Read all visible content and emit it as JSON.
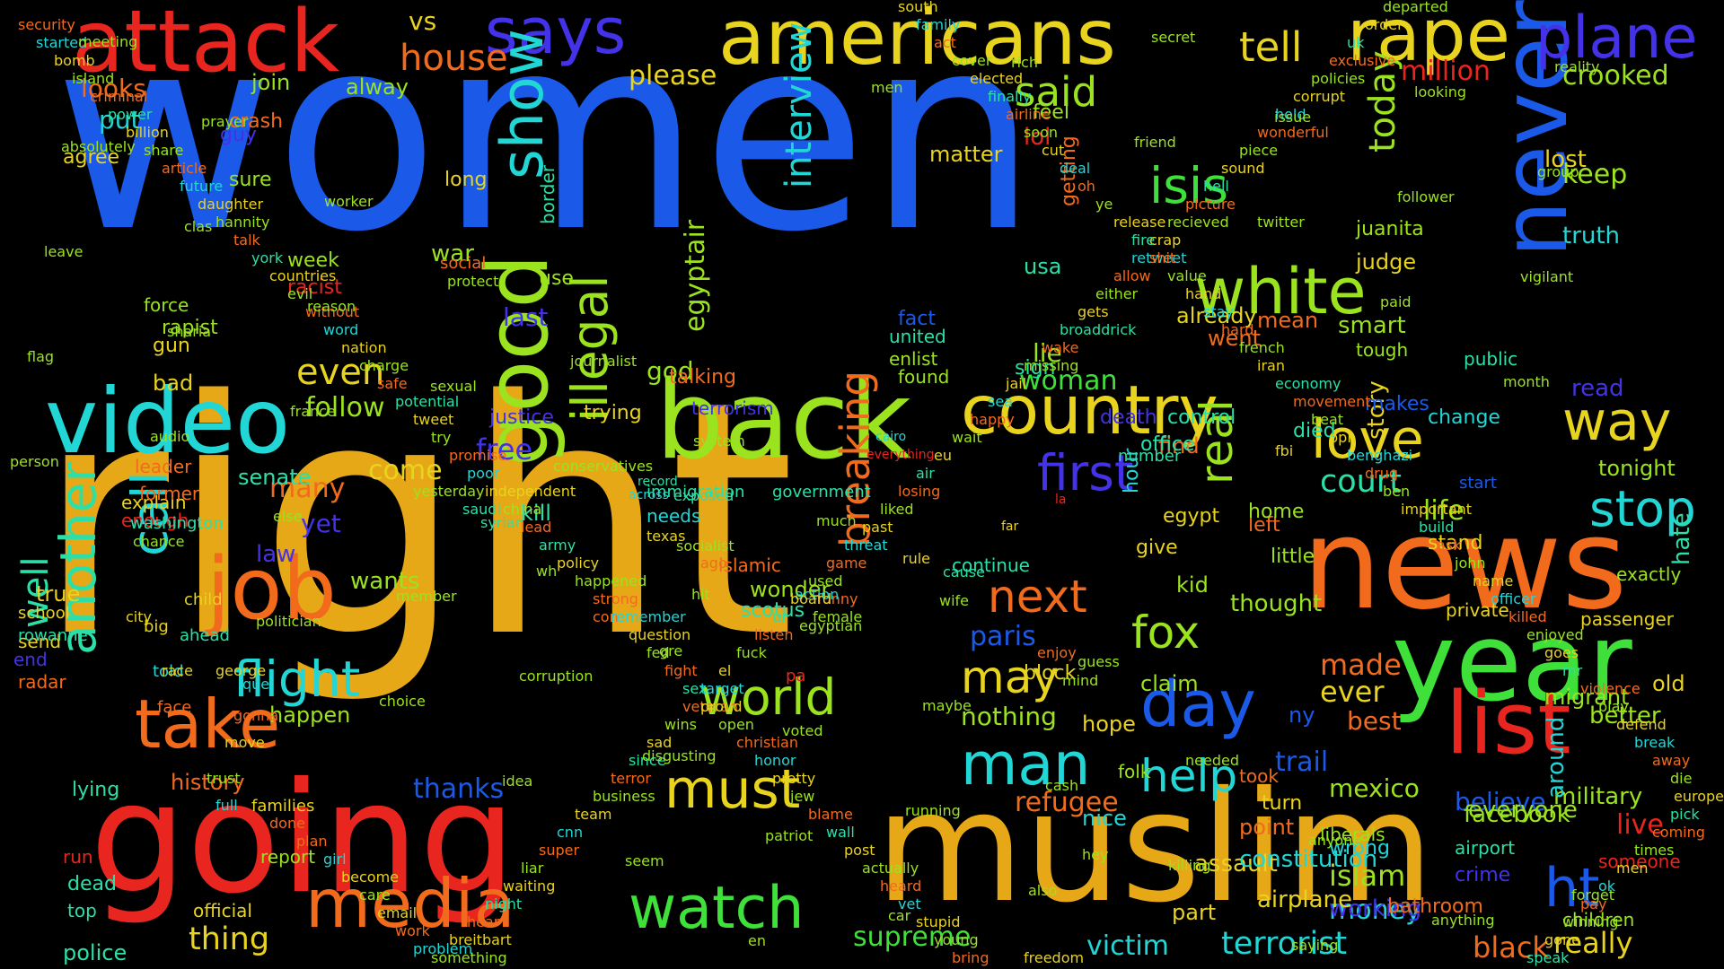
{
  "colors": {
    "background": "#000000",
    "blue": "#1b5ae8",
    "gold": "#e6a817",
    "red": "#e8261f",
    "orange": "#f26b1d",
    "yellow": "#e8d31f",
    "lime": "#9be21f",
    "green": "#3fe03a",
    "cyan": "#22d6d6",
    "indigo": "#4432e8",
    "teal": "#2be0a8"
  },
  "words": [
    "women",
    "right",
    "muslim",
    "going",
    "news",
    "never",
    "year",
    "back",
    "americans",
    "attack",
    "video",
    "job",
    "good",
    "list",
    "country",
    "rape",
    "says",
    "plane",
    "white",
    "take",
    "media",
    "watch",
    "show",
    "love",
    "way",
    "isis",
    "said",
    "tell",
    "flight",
    "day",
    "man",
    "must",
    "world",
    "fox",
    "next",
    "illegal",
    "breaking",
    "another",
    "call",
    "stop",
    "first",
    "help",
    "house",
    "interview",
    "real",
    "even",
    "may",
    "crooked",
    "million",
    "ht",
    "terrorist",
    "black",
    "really",
    "live",
    "court",
    "paris",
    "woman",
    "today",
    "please",
    "keep",
    "egyptair",
    "follow",
    "come",
    "many",
    "free",
    "well",
    "thing",
    "supreme",
    "victim",
    "god",
    "lost",
    "truth",
    "made",
    "ever",
    "life",
    "wants",
    "law",
    "yet",
    "last",
    "war",
    "nothing",
    "refugee",
    "mexico",
    "islam",
    "money",
    "believe",
    "military",
    "better",
    "tonight",
    "happen",
    "history",
    "thanks",
    "lie",
    "lol",
    "feel",
    "looks",
    "put",
    "join",
    "alway",
    "crash",
    "guy",
    "agree",
    "sure",
    "week",
    "racist",
    "rapist",
    "force",
    "gun",
    "bad",
    "true",
    "send",
    "end",
    "radar",
    "police",
    "dead",
    "run",
    "top",
    "official",
    "report",
    "lying",
    "talking",
    "justice",
    "trying",
    "terrorism",
    "immigration",
    "government",
    "fact",
    "united",
    "enlist",
    "found",
    "matter",
    "long",
    "border",
    "social",
    "use",
    "getting",
    "usa",
    "judge",
    "juanita",
    "smart",
    "tough",
    "public",
    "read",
    "story",
    "makes",
    "change",
    "start",
    "stand",
    "private",
    "passenger",
    "hate",
    "old",
    "migrant",
    "children",
    "around",
    "crime",
    "airport",
    "someone",
    "exactly",
    "everyone",
    "facebook",
    "wrong",
    "liberals",
    "working",
    "airplane",
    "part",
    "assault",
    "freedom",
    "constitution",
    "turn",
    "point",
    "took",
    "nice",
    "hey",
    "folk",
    "trail",
    "bathroom",
    "best",
    "ny",
    "claim",
    "hope",
    "little",
    "thought",
    "kid",
    "hour",
    "give",
    "left",
    "home",
    "egypt",
    "sign",
    "control",
    "find",
    "went",
    "already",
    "mean",
    "death",
    "office",
    "number",
    "la",
    "far",
    "died",
    "fbi",
    "cairo",
    "everything",
    "exposed",
    "texas",
    "record",
    "across",
    "saudi",
    "syrian",
    "explain",
    "enough",
    "needs",
    "kill",
    "wonder",
    "scotus",
    "islamic",
    "ago",
    "hit",
    "con",
    "female",
    "funny",
    "city",
    "action",
    "pa",
    "enjoy",
    "guess",
    "block",
    "cause",
    "rule",
    "continue",
    "senate",
    "leader",
    "former",
    "washington",
    "rowanne",
    "school",
    "big",
    "child",
    "ahead",
    "told",
    "face",
    "race",
    "que",
    "george",
    "gonna",
    "move",
    "trust",
    "full",
    "families",
    "done",
    "plan",
    "girl",
    "become",
    "care",
    "email",
    "work",
    "problem",
    "something",
    "breitbart",
    "hear",
    "night",
    "waiting",
    "liar",
    "super",
    "cnn",
    "team",
    "business",
    "terror",
    "since",
    "sad",
    "wins",
    "veteran",
    "target",
    "el",
    "fuck",
    "listen",
    "ur",
    "board",
    "used",
    "game",
    "threat",
    "past",
    "liked",
    "losing",
    "air",
    "eu",
    "wait",
    "happy",
    "sea",
    "jail",
    "missing",
    "wake",
    "broaddrick",
    "gets",
    "either",
    "allow",
    "retweet",
    "crap",
    "recieved",
    "picture",
    "hell",
    "sound",
    "piece",
    "wonderful",
    "hold",
    "corrupt",
    "policies",
    "exclusive",
    "uk",
    "order",
    "departed",
    "security",
    "started",
    "bomb",
    "island",
    "criminal",
    "power",
    "billion",
    "share",
    "article",
    "future",
    "daughter",
    "hannity",
    "talk",
    "york",
    "countries",
    "evil",
    "without",
    "word",
    "nation",
    "charge",
    "safe",
    "potential",
    "tweet",
    "try",
    "promise",
    "poor",
    "independent",
    "china",
    "lead",
    "army",
    "policy",
    "happened",
    "strong",
    "remember",
    "question",
    "fed",
    "fight",
    "sex",
    "proud",
    "open",
    "christian",
    "honor",
    "pretty",
    "jew",
    "blame",
    "wall",
    "post",
    "actually",
    "heard",
    "vet",
    "stupid",
    "young",
    "bring",
    "speak",
    "gone",
    "winning",
    "pay",
    "ok",
    "men",
    "times",
    "coming",
    "pick",
    "europe",
    "die",
    "away",
    "break",
    "defend",
    "play",
    "violence",
    "mr",
    "goes",
    "enjoyed",
    "killed",
    "officer",
    "name",
    "john",
    "ask",
    "build",
    "important",
    "ben",
    "drug",
    "benghazi",
    "ppl",
    "beat",
    "movement",
    "economy",
    "iran",
    "french",
    "hard",
    "stay",
    "hand",
    "value",
    "shit",
    "fire",
    "release",
    "ye",
    "oh",
    "deal",
    "cut",
    "soon",
    "airline",
    "finally",
    "elected",
    "cover",
    "act",
    "family",
    "south",
    "vs",
    "forget",
    "meeting",
    "prayer",
    "worker",
    "protect",
    "journalist",
    "system",
    "much",
    "wife",
    "mind",
    "needed",
    "anyone",
    "anything",
    "reality",
    "absolutely",
    "clas",
    "reason",
    "sexual",
    "conservatives",
    "socialist",
    "egyptian",
    "maybe",
    "cash",
    "killing",
    "saying",
    "looking",
    "group",
    "leave",
    "sharia",
    "france",
    "yesterday",
    "wh",
    "gre",
    "voted",
    "running",
    "also",
    "secret",
    "issue",
    "follower",
    "vigilant",
    "flag",
    "audio",
    "else",
    "member",
    "corruption",
    "disgusting",
    "patriot",
    "car",
    "rich",
    "friend",
    "twitter",
    "paid",
    "month",
    "person",
    "chance",
    "politician",
    "choice",
    "idea",
    "seem",
    "en",
    "men"
  ]
}
